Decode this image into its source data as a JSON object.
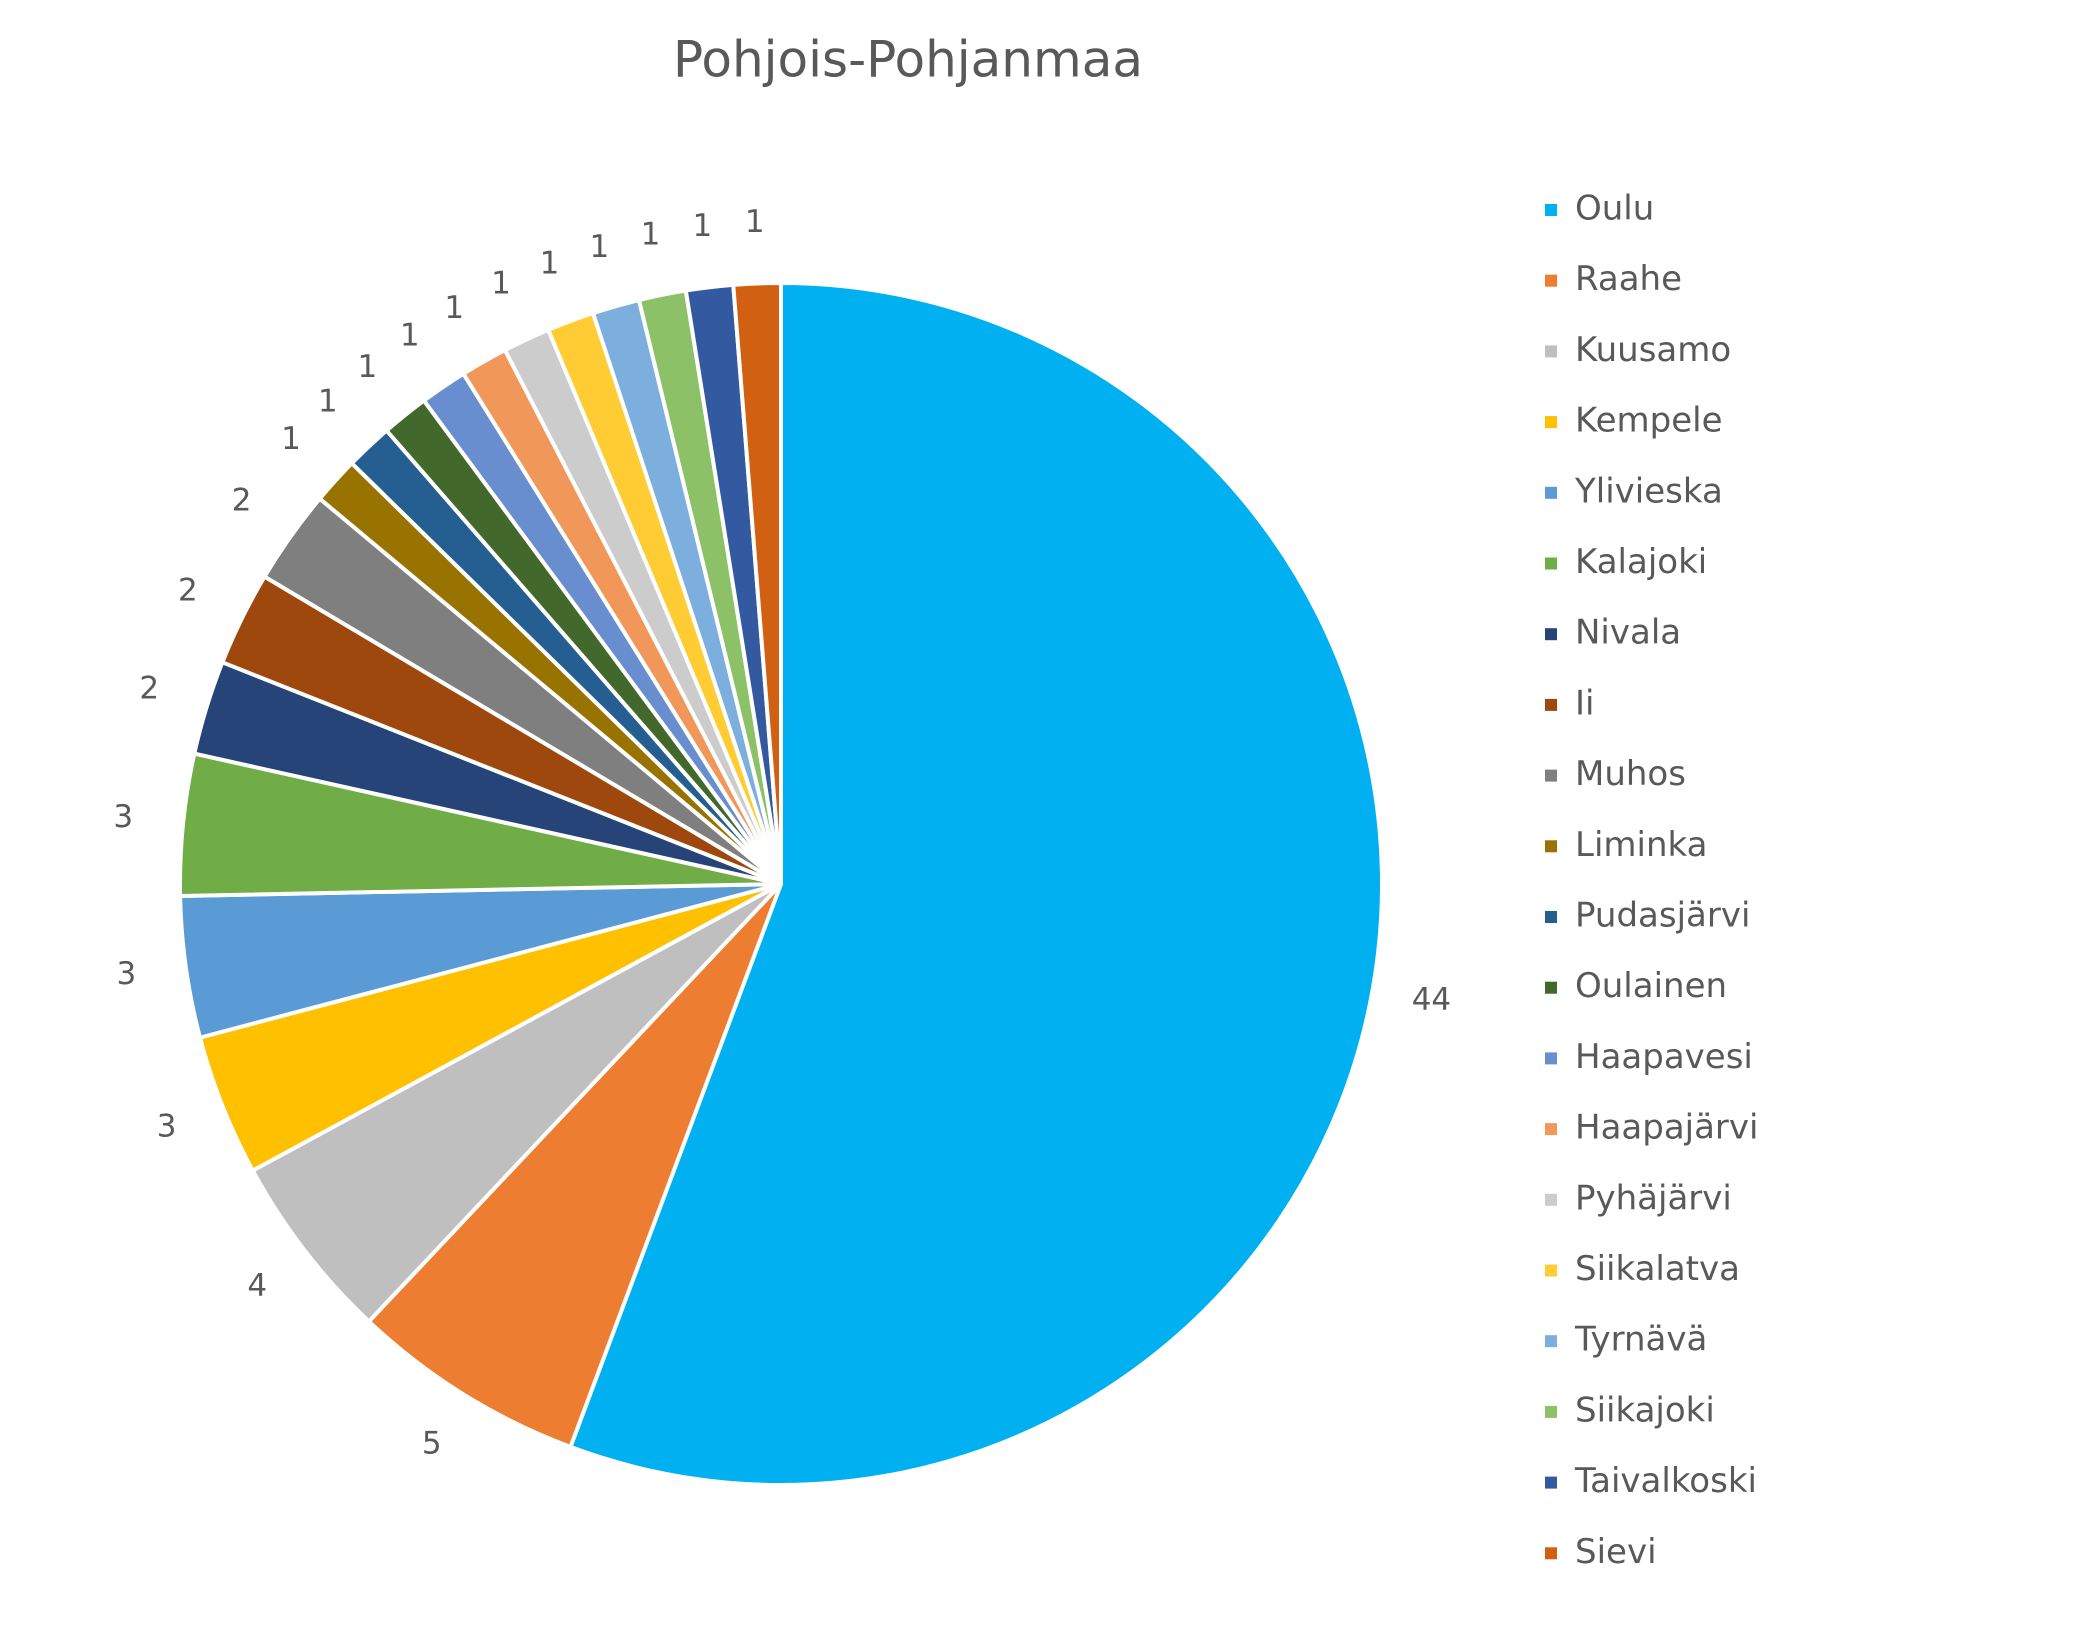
{
  "chart_data": {
    "type": "pie",
    "title": "Pohjois-Pohjanmaa",
    "categories": [
      "Oulu",
      "Raahe",
      "Kuusamo",
      "Kempele",
      "Ylivieska",
      "Kalajoki",
      "Nivala",
      "Ii",
      "Muhos",
      "Liminka",
      "Pudasjärvi",
      "Oulainen",
      "Haapavesi",
      "Haapajärvi",
      "Pyhäjärvi",
      "Siikalatva",
      "Tyrnävä",
      "Siikajoki",
      "Taivalkoski",
      "Sievi"
    ],
    "values": [
      44,
      5,
      4,
      3,
      3,
      3,
      2,
      2,
      2,
      1,
      1,
      1,
      1,
      1,
      1,
      1,
      1,
      1,
      1,
      1
    ],
    "colors": [
      "#00b0f0",
      "#ed7d31",
      "#bfbfbf",
      "#ffc000",
      "#5b9bd5",
      "#70ad47",
      "#264478",
      "#9e480e",
      "#7f7f7f",
      "#997300",
      "#255e91",
      "#43682b",
      "#698ed0",
      "#f1975a",
      "#cccccc",
      "#ffcd33",
      "#7cafdd",
      "#8cc168",
      "#335aa1",
      "#d26012"
    ],
    "legend": "right"
  }
}
